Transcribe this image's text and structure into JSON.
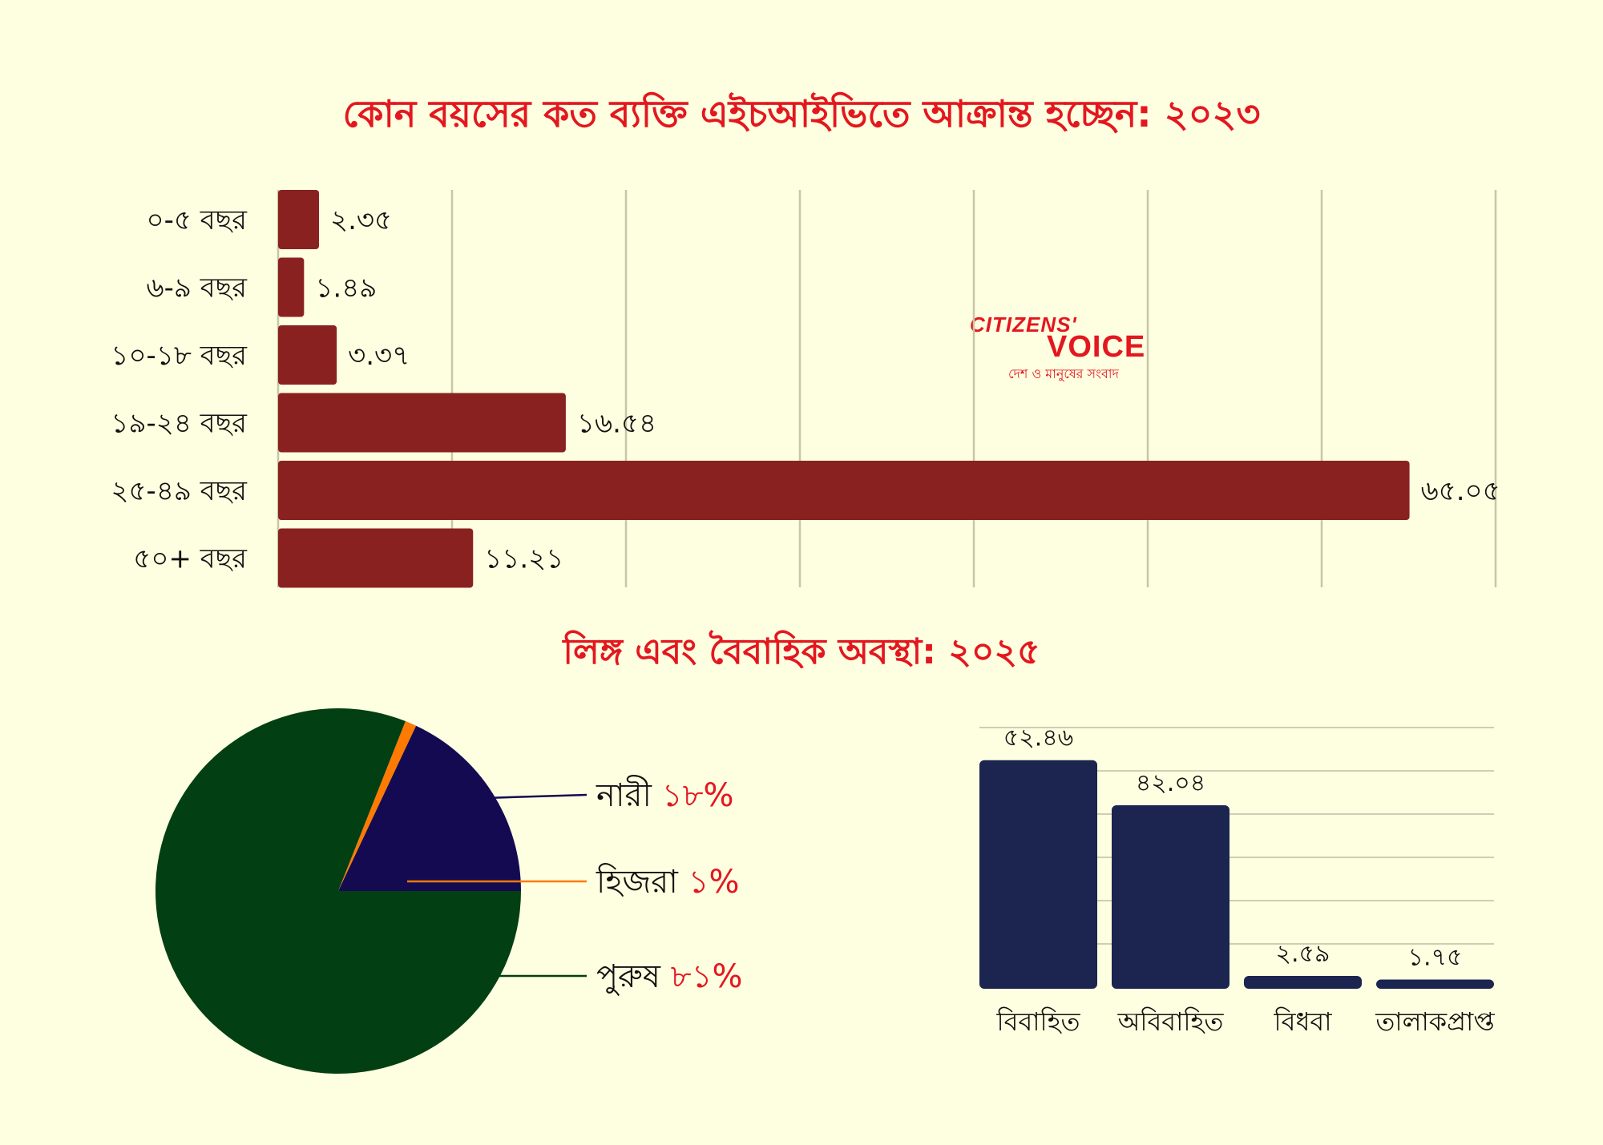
{
  "chart_data": [
    {
      "type": "bar",
      "orientation": "horizontal",
      "title": "কোন বয়সের কত ব্যক্তি এইচআইভিতে আক্রান্ত হচ্ছেন: ২০২৩",
      "categories": [
        "০-৫ বছর",
        "৬-৯ বছর",
        "১০-১৮ বছর",
        "১৯-২৪ বছর",
        "২৫-৪৯ বছর",
        "৫০+ বছর"
      ],
      "values": [
        2.35,
        1.49,
        3.37,
        16.54,
        65.05,
        11.21
      ],
      "value_labels": [
        "২.৩৫",
        "১.৪৯",
        "৩.৩৭",
        "১৬.৫৪",
        "৬৫.০৫",
        "১১.২১"
      ],
      "xlim": [
        0,
        70
      ],
      "grid": true,
      "bar_color": "#8a2121"
    },
    {
      "type": "pie",
      "title": "লিঙ্গ এবং বৈবাহিক অবস্থা: ২০২৫",
      "slices": [
        {
          "label": "নারী",
          "pct_label": "১৮%",
          "value": 18,
          "color": "#140a52"
        },
        {
          "label": "হিজরা",
          "pct_label": "১%",
          "value": 1,
          "color": "#ff7a00"
        },
        {
          "label": "পুরুষ",
          "pct_label": "৮১%",
          "value": 81,
          "color": "#023f13"
        }
      ]
    },
    {
      "type": "bar",
      "orientation": "vertical",
      "categories": [
        "বিবাহিত",
        "অবিবাহিত",
        "বিধবা",
        "তালাকপ্রাপ্ত"
      ],
      "values": [
        52.46,
        42.04,
        2.59,
        1.75
      ],
      "value_labels": [
        "৫২.৪৬",
        "৪২.০৪",
        "২.৫৯",
        "১.৭৫"
      ],
      "ylim": [
        0,
        60
      ],
      "grid": true,
      "bar_color": "#1b2550"
    }
  ],
  "logo": {
    "top": "CITIZENS'",
    "main": "VOICE",
    "tagline": "দেশ ও মানুষের সংবাদ"
  }
}
